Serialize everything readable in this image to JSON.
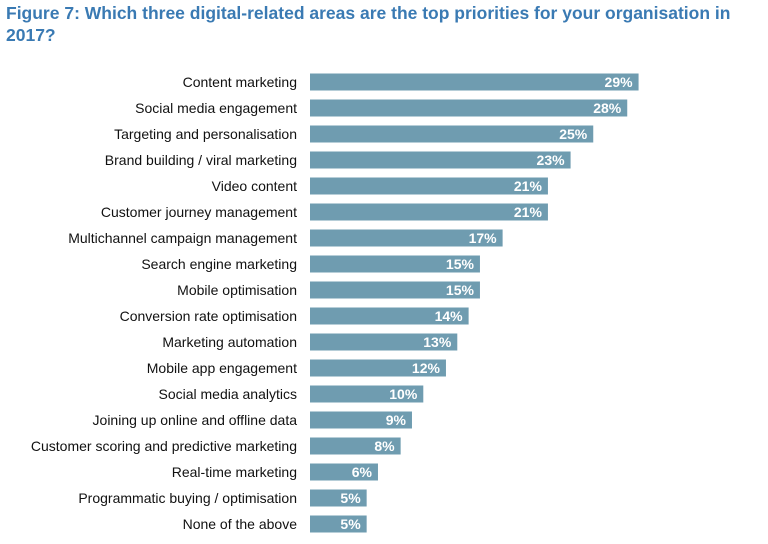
{
  "chart_data": {
    "type": "bar",
    "orientation": "horizontal",
    "title": "Figure 7: Which three digital-related areas are the top priorities for your organisation in 2017?",
    "categories": [
      "Content marketing",
      "Social media engagement",
      "Targeting and personalisation",
      "Brand building / viral marketing",
      "Video content",
      "Customer journey management",
      "Multichannel campaign management",
      "Search engine marketing",
      "Mobile optimisation",
      "Conversion rate optimisation",
      "Marketing automation",
      "Mobile app engagement",
      "Social media analytics",
      "Joining up online and offline data",
      "Customer scoring and predictive marketing",
      "Real-time marketing",
      "Programmatic buying / optimisation",
      "None of the above"
    ],
    "values": [
      29,
      28,
      25,
      23,
      21,
      21,
      17,
      15,
      15,
      14,
      13,
      12,
      10,
      9,
      8,
      6,
      5,
      5
    ],
    "value_labels": [
      "29%",
      "28%",
      "25%",
      "23%",
      "21%",
      "21%",
      "17%",
      "15%",
      "15%",
      "14%",
      "13%",
      "12%",
      "10%",
      "9%",
      "8%",
      "6%",
      "5%",
      "5%"
    ],
    "unit": "%",
    "bar_color": "#6f9cb0",
    "label_color": "#ffffff",
    "title_color": "#3a7ab3",
    "grid": false,
    "legend": "none"
  }
}
